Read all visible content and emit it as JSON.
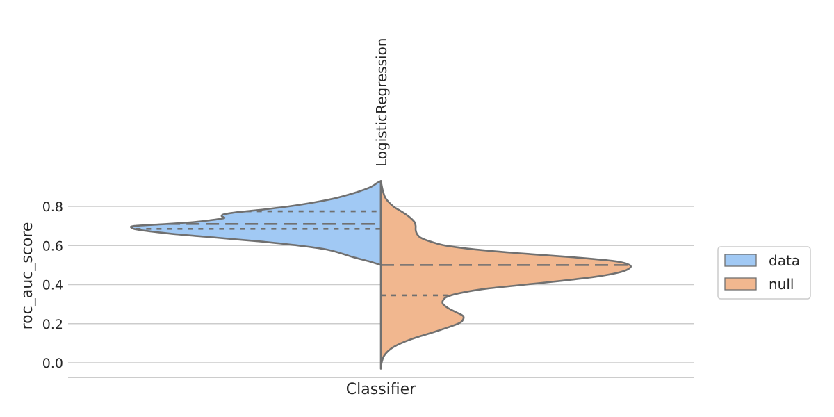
{
  "chart_data": {
    "type": "violin",
    "split": true,
    "xlabel": "Classifier",
    "ylabel": "roc_auc_score",
    "categories": [
      "LogisticRegression"
    ],
    "ylim": [
      -0.08,
      0.97
    ],
    "yticks": [
      0.0,
      0.2,
      0.4,
      0.6,
      0.8
    ],
    "ytick_labels": [
      "0.0",
      "0.2",
      "0.4",
      "0.6",
      "0.8"
    ],
    "grid": "horizontal",
    "legend": {
      "placement": "outside-right"
    },
    "series": [
      {
        "name": "data",
        "side": "left",
        "color": "#a1c9f4",
        "range": [
          0.5,
          0.93
        ],
        "quartiles": {
          "q1": 0.685,
          "median": 0.71,
          "q3": 0.775
        },
        "density": [
          [
            0.5,
            0.0
          ],
          [
            0.52,
            0.05
          ],
          [
            0.54,
            0.11
          ],
          [
            0.56,
            0.16
          ],
          [
            0.58,
            0.22
          ],
          [
            0.6,
            0.33
          ],
          [
            0.62,
            0.48
          ],
          [
            0.64,
            0.66
          ],
          [
            0.66,
            0.84
          ],
          [
            0.68,
            0.97
          ],
          [
            0.69,
            1.0
          ],
          [
            0.7,
            0.99
          ],
          [
            0.71,
            0.86
          ],
          [
            0.72,
            0.75
          ],
          [
            0.73,
            0.68
          ],
          [
            0.74,
            0.63
          ],
          [
            0.75,
            0.64
          ],
          [
            0.76,
            0.63
          ],
          [
            0.77,
            0.58
          ],
          [
            0.78,
            0.5
          ],
          [
            0.8,
            0.37
          ],
          [
            0.82,
            0.27
          ],
          [
            0.84,
            0.19
          ],
          [
            0.86,
            0.13
          ],
          [
            0.88,
            0.08
          ],
          [
            0.9,
            0.04
          ],
          [
            0.92,
            0.015
          ],
          [
            0.93,
            0.0
          ]
        ]
      },
      {
        "name": "null",
        "side": "right",
        "color": "#f1b78f",
        "range": [
          -0.03,
          0.93
        ],
        "quartiles": {
          "q1": 0.345,
          "median": 0.5,
          "q3": null
        },
        "density": [
          [
            -0.03,
            0.0
          ],
          [
            0.0,
            0.003
          ],
          [
            0.04,
            0.015
          ],
          [
            0.08,
            0.05
          ],
          [
            0.12,
            0.12
          ],
          [
            0.16,
            0.22
          ],
          [
            0.2,
            0.31
          ],
          [
            0.22,
            0.33
          ],
          [
            0.24,
            0.33
          ],
          [
            0.26,
            0.3
          ],
          [
            0.28,
            0.27
          ],
          [
            0.3,
            0.25
          ],
          [
            0.32,
            0.25
          ],
          [
            0.34,
            0.27
          ],
          [
            0.36,
            0.33
          ],
          [
            0.38,
            0.43
          ],
          [
            0.4,
            0.58
          ],
          [
            0.42,
            0.73
          ],
          [
            0.44,
            0.86
          ],
          [
            0.46,
            0.95
          ],
          [
            0.48,
            0.995
          ],
          [
            0.5,
            1.0
          ],
          [
            0.52,
            0.94
          ],
          [
            0.54,
            0.77
          ],
          [
            0.56,
            0.56
          ],
          [
            0.58,
            0.38
          ],
          [
            0.6,
            0.26
          ],
          [
            0.62,
            0.2
          ],
          [
            0.64,
            0.16
          ],
          [
            0.66,
            0.145
          ],
          [
            0.68,
            0.14
          ],
          [
            0.7,
            0.14
          ],
          [
            0.72,
            0.135
          ],
          [
            0.74,
            0.12
          ],
          [
            0.76,
            0.1
          ],
          [
            0.78,
            0.075
          ],
          [
            0.8,
            0.05
          ],
          [
            0.84,
            0.02
          ],
          [
            0.88,
            0.008
          ],
          [
            0.93,
            0.0
          ]
        ]
      }
    ]
  }
}
